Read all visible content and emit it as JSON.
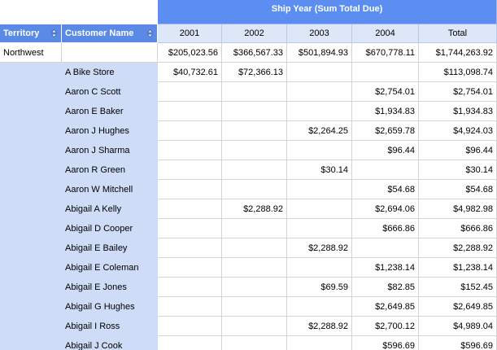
{
  "header": {
    "title": "Ship Year (Sum Total Due)",
    "row_headers": [
      "Territory",
      "Customer Name"
    ],
    "columns": [
      "2001",
      "2002",
      "2003",
      "2004",
      "Total"
    ]
  },
  "table": {
    "rows": [
      [
        "Northwest",
        null,
        "$205,023.56",
        "$366,567.33",
        "$501,894.93",
        "$670,778.11",
        "$1,744,263.92"
      ],
      [
        null,
        "A Bike Store",
        "$40,732.61",
        "$72,366.13",
        null,
        null,
        "$113,098.74"
      ],
      [
        null,
        "Aaron C Scott",
        null,
        null,
        null,
        "$2,754.01",
        "$2,754.01"
      ],
      [
        null,
        "Aaron E Baker",
        null,
        null,
        null,
        "$1,934.83",
        "$1,934.83"
      ],
      [
        null,
        "Aaron J Hughes",
        null,
        null,
        "$2,264.25",
        "$2,659.78",
        "$4,924.03"
      ],
      [
        null,
        "Aaron J Sharma",
        null,
        null,
        null,
        "$96.44",
        "$96.44"
      ],
      [
        null,
        "Aaron R Green",
        null,
        null,
        "$30.14",
        null,
        "$30.14"
      ],
      [
        null,
        "Aaron W Mitchell",
        null,
        null,
        null,
        "$54.68",
        "$54.68"
      ],
      [
        null,
        "Abigail A Kelly",
        null,
        "$2,288.92",
        null,
        "$2,694.06",
        "$4,982.98"
      ],
      [
        null,
        "Abigail D Cooper",
        null,
        null,
        null,
        "$666.86",
        "$666.86"
      ],
      [
        null,
        "Abigail E Bailey",
        null,
        null,
        "$2,288.92",
        null,
        "$2,288.92"
      ],
      [
        null,
        "Abigail E Coleman",
        null,
        null,
        null,
        "$1,238.14",
        "$1,238.14"
      ],
      [
        null,
        "Abigail E Jones",
        null,
        null,
        "$69.59",
        "$82.85",
        "$152.45"
      ],
      [
        null,
        "Abigail G Hughes",
        null,
        null,
        null,
        "$2,649.85",
        "$2,649.85"
      ],
      [
        null,
        "Abigail I Ross",
        null,
        null,
        "$2,288.92",
        "$2,700.12",
        "$4,989.04"
      ],
      [
        null,
        "Abigail J Cook",
        null,
        null,
        null,
        "$596.69",
        "$596.69"
      ]
    ]
  }
}
